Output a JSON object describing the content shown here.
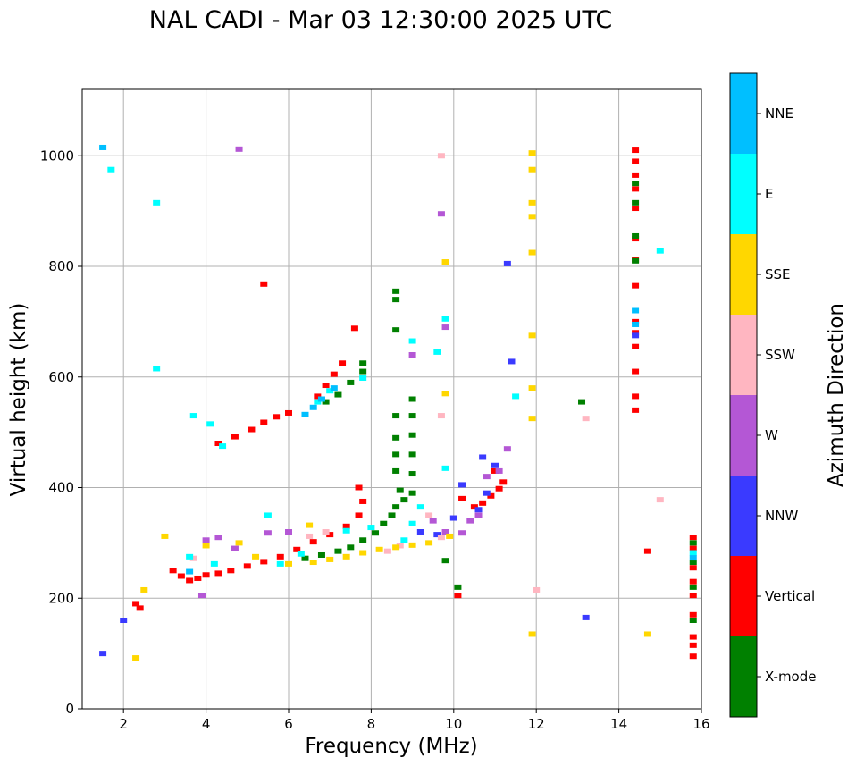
{
  "chart_data": {
    "type": "scatter",
    "title": "NAL CADI - Mar 03 12:30:00 2025 UTC",
    "xlabel": "Frequency (MHz)",
    "ylabel": "Virtual height (km)",
    "xlim": [
      1,
      16
    ],
    "ylim": [
      0,
      1120
    ],
    "xticks": [
      2,
      4,
      6,
      8,
      10,
      12,
      14,
      16
    ],
    "yticks": [
      0,
      200,
      400,
      600,
      800,
      1000
    ],
    "grid": true,
    "colorbar": {
      "title": "Azimuth Direction",
      "categories": [
        {
          "label": "X-mode",
          "color": "#008000"
        },
        {
          "label": "Vertical",
          "color": "#ff0000"
        },
        {
          "label": "NNW",
          "color": "#3a3aff"
        },
        {
          "label": "W",
          "color": "#b457d5"
        },
        {
          "label": "SSW",
          "color": "#ffb6c1"
        },
        {
          "label": "SSE",
          "color": "#ffd700"
        },
        {
          "label": "E",
          "color": "#00ffff"
        },
        {
          "label": "NNE",
          "color": "#00bfff"
        }
      ]
    },
    "series": [
      {
        "name": "Vertical",
        "color": "#ff0000",
        "points": [
          [
            2.3,
            190
          ],
          [
            2.4,
            182
          ],
          [
            3.2,
            250
          ],
          [
            3.4,
            240
          ],
          [
            3.6,
            232
          ],
          [
            3.8,
            236
          ],
          [
            4.0,
            242
          ],
          [
            4.3,
            245
          ],
          [
            4.6,
            250
          ],
          [
            5.0,
            258
          ],
          [
            5.4,
            266
          ],
          [
            5.8,
            275
          ],
          [
            6.2,
            288
          ],
          [
            6.6,
            302
          ],
          [
            7.0,
            315
          ],
          [
            7.4,
            330
          ],
          [
            7.7,
            350
          ],
          [
            7.8,
            375
          ],
          [
            7.7,
            400
          ],
          [
            10.2,
            380
          ],
          [
            10.5,
            365
          ],
          [
            10.7,
            372
          ],
          [
            10.9,
            385
          ],
          [
            11.1,
            398
          ],
          [
            11.2,
            410
          ],
          [
            11.0,
            430
          ],
          [
            4.3,
            480
          ],
          [
            4.7,
            492
          ],
          [
            5.1,
            505
          ],
          [
            5.4,
            518
          ],
          [
            5.7,
            528
          ],
          [
            6.0,
            535
          ],
          [
            6.7,
            565
          ],
          [
            6.9,
            585
          ],
          [
            7.1,
            605
          ],
          [
            7.3,
            625
          ],
          [
            7.6,
            688
          ],
          [
            14.4,
            540
          ],
          [
            14.4,
            565
          ],
          [
            14.4,
            610
          ],
          [
            14.4,
            655
          ],
          [
            14.4,
            680
          ],
          [
            14.4,
            700
          ],
          [
            14.4,
            765
          ],
          [
            14.4,
            812
          ],
          [
            14.4,
            850
          ],
          [
            14.4,
            905
          ],
          [
            14.4,
            940
          ],
          [
            14.4,
            965
          ],
          [
            14.4,
            990
          ],
          [
            14.4,
            1010
          ],
          [
            15.8,
            95
          ],
          [
            15.8,
            115
          ],
          [
            15.8,
            130
          ],
          [
            15.8,
            170
          ],
          [
            15.8,
            205
          ],
          [
            15.8,
            230
          ],
          [
            15.8,
            255
          ],
          [
            15.8,
            290
          ],
          [
            15.8,
            310
          ],
          [
            14.7,
            285
          ],
          [
            10.1,
            205
          ],
          [
            5.4,
            768
          ]
        ]
      },
      {
        "name": "X-mode",
        "color": "#008000",
        "points": [
          [
            6.4,
            272
          ],
          [
            6.8,
            278
          ],
          [
            7.2,
            285
          ],
          [
            7.5,
            292
          ],
          [
            7.8,
            305
          ],
          [
            8.1,
            318
          ],
          [
            8.3,
            335
          ],
          [
            8.5,
            350
          ],
          [
            8.6,
            365
          ],
          [
            8.8,
            378
          ],
          [
            9.0,
            390
          ],
          [
            8.7,
            395
          ],
          [
            8.6,
            430
          ],
          [
            8.6,
            460
          ],
          [
            8.6,
            490
          ],
          [
            8.6,
            530
          ],
          [
            9.0,
            425
          ],
          [
            9.0,
            460
          ],
          [
            9.0,
            495
          ],
          [
            9.0,
            530
          ],
          [
            9.0,
            560
          ],
          [
            8.6,
            685
          ],
          [
            8.6,
            740
          ],
          [
            8.6,
            755
          ],
          [
            6.9,
            555
          ],
          [
            7.2,
            568
          ],
          [
            7.5,
            590
          ],
          [
            7.8,
            610
          ],
          [
            7.8,
            625
          ],
          [
            10.1,
            220
          ],
          [
            9.8,
            268
          ],
          [
            13.1,
            555
          ],
          [
            14.4,
            915
          ],
          [
            14.4,
            810
          ],
          [
            14.4,
            855
          ],
          [
            14.4,
            950
          ],
          [
            15.8,
            160
          ],
          [
            15.8,
            220
          ],
          [
            15.8,
            265
          ],
          [
            15.8,
            300
          ]
        ]
      },
      {
        "name": "NNW",
        "color": "#3a3aff",
        "points": [
          [
            9.2,
            320
          ],
          [
            9.6,
            315
          ],
          [
            10.0,
            345
          ],
          [
            10.6,
            360
          ],
          [
            10.8,
            390
          ],
          [
            10.7,
            455
          ],
          [
            11.0,
            440
          ],
          [
            11.4,
            628
          ],
          [
            11.3,
            805
          ],
          [
            13.2,
            165
          ],
          [
            1.5,
            100
          ],
          [
            2.0,
            160
          ],
          [
            14.4,
            675
          ],
          [
            10.2,
            405
          ]
        ]
      },
      {
        "name": "W",
        "color": "#b457d5",
        "points": [
          [
            4.0,
            305
          ],
          [
            4.3,
            310
          ],
          [
            4.7,
            290
          ],
          [
            5.5,
            318
          ],
          [
            6.0,
            320
          ],
          [
            9.8,
            690
          ],
          [
            9.7,
            895
          ],
          [
            9.0,
            640
          ],
          [
            10.2,
            318
          ],
          [
            10.4,
            340
          ],
          [
            10.6,
            350
          ],
          [
            10.8,
            420
          ],
          [
            11.1,
            430
          ],
          [
            3.9,
            205
          ],
          [
            4.8,
            1012
          ],
          [
            9.5,
            340
          ],
          [
            9.8,
            320
          ],
          [
            11.3,
            470
          ]
        ]
      },
      {
        "name": "SSW",
        "color": "#ffb6c1",
        "points": [
          [
            6.5,
            312
          ],
          [
            6.9,
            320
          ],
          [
            3.7,
            272
          ],
          [
            8.4,
            285
          ],
          [
            8.7,
            295
          ],
          [
            9.4,
            350
          ],
          [
            9.7,
            310
          ],
          [
            13.2,
            525
          ],
          [
            15.0,
            378
          ],
          [
            12.0,
            215
          ],
          [
            9.7,
            1000
          ],
          [
            9.7,
            530
          ]
        ]
      },
      {
        "name": "SSE",
        "color": "#ffd700",
        "points": [
          [
            6.0,
            262
          ],
          [
            6.6,
            265
          ],
          [
            7.0,
            270
          ],
          [
            7.4,
            275
          ],
          [
            7.8,
            282
          ],
          [
            8.2,
            288
          ],
          [
            8.6,
            292
          ],
          [
            9.0,
            296
          ],
          [
            9.4,
            300
          ],
          [
            9.9,
            312
          ],
          [
            11.9,
            525
          ],
          [
            11.9,
            580
          ],
          [
            11.9,
            675
          ],
          [
            11.9,
            825
          ],
          [
            11.9,
            890
          ],
          [
            11.9,
            915
          ],
          [
            11.9,
            975
          ],
          [
            11.9,
            1005
          ],
          [
            11.9,
            135
          ],
          [
            14.7,
            135
          ],
          [
            2.3,
            92
          ],
          [
            2.5,
            215
          ],
          [
            3.0,
            312
          ],
          [
            4.0,
            295
          ],
          [
            4.8,
            300
          ],
          [
            5.2,
            275
          ],
          [
            6.5,
            332
          ],
          [
            9.8,
            570
          ],
          [
            9.8,
            808
          ]
        ]
      },
      {
        "name": "E",
        "color": "#00ffff",
        "points": [
          [
            3.6,
            275
          ],
          [
            4.2,
            262
          ],
          [
            5.8,
            262
          ],
          [
            6.3,
            280
          ],
          [
            7.4,
            322
          ],
          [
            8.0,
            328
          ],
          [
            8.8,
            305
          ],
          [
            9.2,
            365
          ],
          [
            9.0,
            335
          ],
          [
            7.8,
            598
          ],
          [
            7.0,
            575
          ],
          [
            6.7,
            555
          ],
          [
            9.8,
            705
          ],
          [
            9.0,
            665
          ],
          [
            9.8,
            435
          ],
          [
            9.6,
            645
          ],
          [
            11.5,
            565
          ],
          [
            15.0,
            828
          ],
          [
            1.7,
            975
          ],
          [
            2.8,
            915
          ],
          [
            2.8,
            615
          ],
          [
            3.7,
            530
          ],
          [
            4.1,
            515
          ],
          [
            4.4,
            475
          ],
          [
            5.5,
            350
          ],
          [
            15.8,
            282
          ]
        ]
      },
      {
        "name": "NNE",
        "color": "#00bfff",
        "points": [
          [
            6.4,
            532
          ],
          [
            6.6,
            545
          ],
          [
            6.8,
            560
          ],
          [
            7.1,
            580
          ],
          [
            14.4,
            720
          ],
          [
            14.4,
            695
          ],
          [
            1.5,
            1015
          ],
          [
            3.6,
            248
          ],
          [
            15.8,
            273
          ]
        ]
      }
    ]
  }
}
